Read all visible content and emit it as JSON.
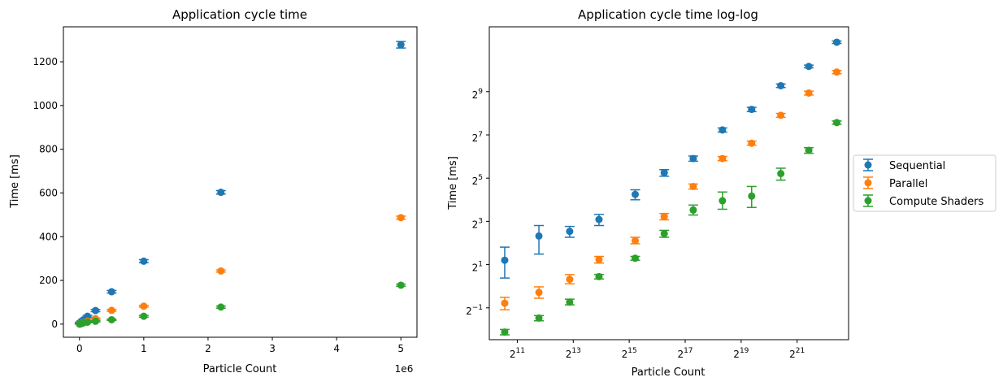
{
  "chart_data": [
    {
      "type": "scatter",
      "title": "Application cycle time",
      "xlabel": "Particle Count",
      "ylabel": "Time [ms]",
      "x_offset_text": "1e6",
      "xlim": [
        -0.25,
        5.25
      ],
      "ylim": [
        -60,
        1360
      ],
      "x_ticks": [
        0,
        1,
        2,
        3,
        4,
        5
      ],
      "x_tick_labels": [
        "0",
        "1",
        "2",
        "3",
        "4",
        "5"
      ],
      "y_ticks": [
        0,
        200,
        400,
        600,
        800,
        1000,
        1200
      ],
      "y_tick_labels": [
        "0",
        "200",
        "400",
        "600",
        "800",
        "1000",
        "1200"
      ],
      "x": [
        0.002,
        0.0035,
        0.0075,
        0.0155,
        0.031,
        0.063,
        0.125,
        0.25,
        0.5,
        1.0,
        2.2,
        5.0
      ],
      "series": [
        {
          "name": "Sequential",
          "color": "#1f77b4",
          "x_index": [
            0,
            1,
            2,
            3,
            4,
            5,
            6,
            7,
            8,
            9,
            10,
            11
          ],
          "values": [
            2.3,
            5.0,
            5.8,
            8.5,
            12,
            20,
            36,
            62,
            148,
            288,
            603,
            1278
          ],
          "errors": [
            1.0,
            2.0,
            1.2,
            1.5,
            3,
            4,
            4,
            5,
            6,
            7,
            8,
            15
          ]
        },
        {
          "name": "Parallel",
          "color": "#ff7f0e",
          "x_index": [
            0,
            1,
            2,
            3,
            4,
            5,
            6,
            7,
            8,
            9,
            10,
            11
          ],
          "values": [
            0.8,
            1.0,
            1.5,
            2.5,
            4,
            7,
            13,
            25,
            63,
            82,
            243,
            487
          ],
          "errors": [
            0.15,
            0.2,
            0.2,
            0.3,
            1,
            1,
            2,
            3,
            4,
            4,
            5,
            7
          ]
        },
        {
          "name": "Compute Shaders",
          "color": "#2ca02c",
          "x_index": [
            0,
            1,
            2,
            3,
            4,
            5,
            6,
            7,
            8,
            9,
            10,
            11
          ],
          "values": [
            0.3,
            0.4,
            0.6,
            1.2,
            2.5,
            5.5,
            9,
            13,
            20,
            36,
            78,
            178
          ],
          "errors": [
            0.04,
            0.05,
            0.08,
            0.15,
            0.5,
            1.0,
            2.5,
            3,
            3,
            4,
            5,
            5
          ]
        }
      ]
    },
    {
      "type": "scatter",
      "title": "Application cycle time log-log",
      "xlabel": "Particle Count",
      "ylabel": "Time [ms]",
      "x_scale": "log2",
      "y_scale": "log2",
      "xlim": [
        1024,
        7500000
      ],
      "ylim": [
        0.18,
        4096
      ],
      "x_ticks": [
        2048,
        8192,
        32768,
        131072,
        524288,
        2097152
      ],
      "x_tick_labels": [
        {
          "base": "2",
          "exp": "11"
        },
        {
          "base": "2",
          "exp": "13"
        },
        {
          "base": "2",
          "exp": "15"
        },
        {
          "base": "2",
          "exp": "17"
        },
        {
          "base": "2",
          "exp": "19"
        },
        {
          "base": "2",
          "exp": "21"
        }
      ],
      "y_ticks": [
        0.5,
        2,
        8,
        32,
        128,
        512
      ],
      "y_tick_labels": [
        {
          "base": "2",
          "exp": "−1"
        },
        {
          "base": "2",
          "exp": "1"
        },
        {
          "base": "2",
          "exp": "3"
        },
        {
          "base": "2",
          "exp": "5"
        },
        {
          "base": "2",
          "exp": "7"
        },
        {
          "base": "2",
          "exp": "9"
        }
      ],
      "x": [
        2000,
        3500,
        7500,
        15500,
        31000,
        63000,
        125000,
        250000,
        500000,
        1000000,
        2200000,
        5000000
      ],
      "series": [
        {
          "name": "Sequential",
          "color": "#1f77b4",
          "values": [
            2.3,
            5.0,
            5.8,
            8.5,
            19,
            38,
            60,
            150,
            290,
            620,
            1150,
            2500
          ],
          "lower": [
            1.3,
            2.8,
            4.8,
            7.0,
            16,
            34,
            55,
            140,
            270,
            585,
            1100,
            2400
          ],
          "upper": [
            3.5,
            7.0,
            6.8,
            10.0,
            22,
            42,
            65,
            160,
            310,
            655,
            1200,
            2600
          ],
          "plotted_x": [
            1500,
            3500,
            7500,
            15500,
            38000,
            78000,
            160000,
            330000,
            680000,
            1400000,
            2800000,
            5600000
          ]
        },
        {
          "name": "Parallel",
          "color": "#ff7f0e",
          "values": [
            0.58,
            0.82,
            1.25,
            2.35,
            4.3,
            9.3,
            24.5,
            60,
            98,
            240,
            490,
            960
          ],
          "lower": [
            0.47,
            0.68,
            1.08,
            2.1,
            3.9,
            8.4,
            22.5,
            56,
            92,
            225,
            460,
            910
          ],
          "upper": [
            0.7,
            0.98,
            1.45,
            2.6,
            4.8,
            10.3,
            26.5,
            64,
            105,
            255,
            520,
            1010
          ],
          "plotted_x": [
            1500,
            3500,
            7500,
            15500,
            38000,
            78000,
            160000,
            330000,
            680000,
            1400000,
            2800000,
            5600000
          ]
        },
        {
          "name": "Compute Shaders",
          "color": "#2ca02c",
          "values": [
            0.23,
            0.36,
            0.6,
            1.36,
            2.45,
            5.4,
            11.5,
            15.5,
            18,
            37,
            78,
            190
          ],
          "lower": [
            0.21,
            0.33,
            0.55,
            1.26,
            2.3,
            4.8,
            9.8,
            11.8,
            12.5,
            30,
            71,
            180
          ],
          "upper": [
            0.25,
            0.39,
            0.66,
            1.46,
            2.6,
            6.0,
            13.5,
            20.5,
            24.5,
            44,
            85,
            200
          ],
          "plotted_x": [
            1500,
            3500,
            7500,
            15500,
            38000,
            78000,
            160000,
            330000,
            680000,
            1400000,
            2800000,
            5600000
          ]
        }
      ],
      "legend": {
        "placement": "outside-right",
        "entries": [
          "Sequential",
          "Parallel",
          "Compute Shaders"
        ]
      }
    }
  ]
}
